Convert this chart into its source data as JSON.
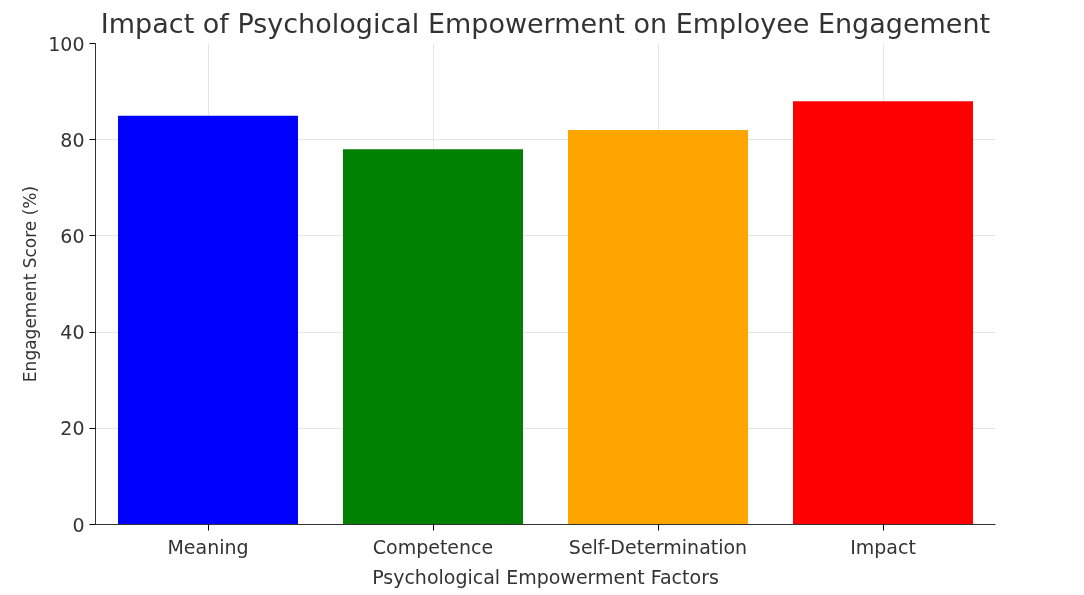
{
  "chart_data": {
    "type": "bar",
    "title": "Impact of Psychological Empowerment on Employee Engagement",
    "xlabel": "Psychological Empowerment Factors",
    "ylabel": "Engagement Score (%)",
    "categories": [
      "Meaning",
      "Competence",
      "Self-Determination",
      "Impact"
    ],
    "values": [
      85,
      78,
      82,
      88
    ],
    "colors": [
      "#0000ff",
      "#008000",
      "#ffa500",
      "#ff0000"
    ],
    "ylim": [
      0,
      100
    ],
    "yticks": [
      0,
      20,
      40,
      60,
      80,
      100
    ],
    "grid": true
  }
}
